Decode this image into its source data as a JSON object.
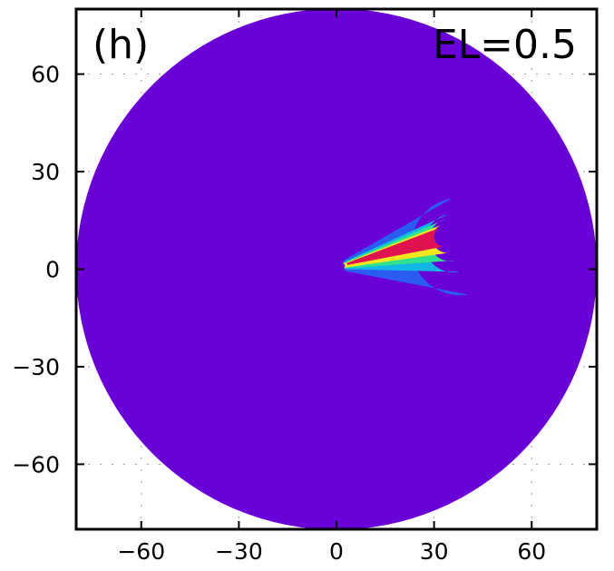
{
  "chart_data": {
    "type": "heatmap",
    "panel_label": "(h)",
    "annotation": "EL=0.5",
    "xlim": [
      -80,
      80
    ],
    "ylim": [
      -80,
      80
    ],
    "x_ticks": [
      -60,
      -30,
      0,
      30,
      60
    ],
    "y_ticks": [
      -60,
      -30,
      0,
      30,
      60
    ],
    "x_tick_labels": [
      "−60",
      "−30",
      "0",
      "30",
      "60"
    ],
    "y_tick_labels": [
      "−60",
      "−30",
      "0",
      "30",
      "60"
    ],
    "grid": true,
    "domain": {
      "shape": "circle",
      "center": [
        0,
        0
      ],
      "radius": 80,
      "fill": "#6a00d8"
    },
    "levels": [
      {
        "color": "#2a5cf2",
        "shape": "plume",
        "base": [
          2,
          1
        ],
        "head": [
          38,
          7
        ],
        "radius": 15,
        "tail_radius": 1.5
      },
      {
        "color": "#11b8e6",
        "shape": "plume",
        "base": [
          2,
          1
        ],
        "head": [
          36,
          8
        ],
        "radius": 9,
        "tail_radius": 1.0
      },
      {
        "color": "#2fe38e",
        "shape": "plume",
        "base": [
          2,
          1
        ],
        "head": [
          35,
          9
        ],
        "radius": 6.5,
        "tail_radius": 0.8
      },
      {
        "color": "#f4e81d",
        "shape": "plume",
        "base": [
          2,
          1
        ],
        "head": [
          34,
          9.5
        ],
        "radius": 4.5,
        "tail_radius": 0.6
      },
      {
        "color": "#e0124f",
        "shape": "plume",
        "base": [
          3,
          1.5
        ],
        "head": [
          33,
          10
        ],
        "radius": 3,
        "tail_radius": 0.3
      }
    ]
  }
}
